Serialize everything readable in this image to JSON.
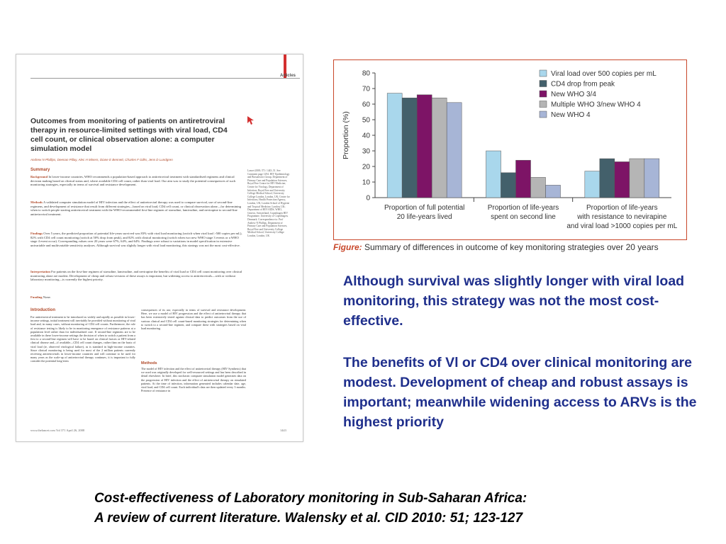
{
  "article": {
    "section_label": "Articles",
    "title": "Outcomes from monitoring of patients on antiretroviral therapy in resource-limited settings with viral load, CD4 cell count, or clinical observation alone: a computer simulation model",
    "authors": "Andrew N Phillips, Deenan Pillay, Alec H Miners, Diane E Bennett, Charles F Gilks, Jens D Lundgren",
    "summary_heading": "Summary",
    "background_label": "Background",
    "background_text": "In lower-income countries, WHO recommends a population-based approach to antiretroviral treatment with standardised regimens and clinical decision making based on clinical status and, where available CD4 cell count, rather than viral load. Our aim was to study the potential consequences of such monitoring strategies, especially in terms of survival and resistance development.",
    "methods_label": "Methods",
    "methods_text": "A validated computer simulation model of HIV infection and the effect of antiretroviral therapy was used to compare survival, use of second-line regimens, and development of resistance that result from different strategies—based on viral load, CD4 cell count, or clinical observation alone—for determining when to switch people starting antiretroviral treatment with the WHO-recommended first-line regimen of stavudine, lamivudine, and nevirapine to second-line antiretroviral treatment.",
    "findings_label": "Findings",
    "findings_text": "Over 5 years, the predicted proportion of potential life-years survived was 83% with viral load monitoring (switch when viral load >500 copies per mL), 82% with CD4 cell count monitoring (switch at 50% drop from peak), and 82% with clinical monitoring (switch when two new WHO stage 3 events or a WHO stage 4 event occur). Corresponding values over 20 years were 67%, 64%, and 64%. Findings were robust to variations in model specification in extensive univariable and multivariable sensitivity analyses. Although survival was slightly longer with viral load monitoring, this strategy was not the most cost-effective.",
    "interpretation_label": "Interpretation",
    "interpretation_text": "For patients on the first-line regimen of stavudine, lamivudine, and nevirapine the benefits of viral load or CD4 cell count monitoring over clinical monitoring alone are modest. Development of cheap and robust versions of these assays is important, but widening access to antiretrovirals—with or without laboratory monitoring—is currently the highest priority.",
    "funding_label": "Funding",
    "funding_text": "None.",
    "sidebar_text": "Lancet 2008; 371: 1443–51. See Comment page 1294. HIV Epidemiology and Biostatistics Group, Department of Primary Care and Population Sciences, Royal Free Centre for HIV Medicine; Centre for Virology, Department of Infection; Royal Free and University College Medical School, University College London, London, UK; Centre for Infections, Health Protection Agency, London, UK; London School of Hygiene and Tropical Medicine, London, UK; Department of HIV/AIDS, WHO, Geneva, Switzerland; Copenhagen HIV Programme, University of Copenhagen, Denmark. Correspondence to: Prof Andrew N Phillips, Department of Primary Care and Population Sciences, Royal Free and University College Medical School, University College London, London, UK",
    "intro_heading": "Introduction",
    "intro_text": "For antiretroviral treatment to be introduced as widely and rapidly as possible in lower-income settings, initial treatment will inevitably be provided without monitoring of viral load and, in many cases, without monitoring of CD4 cell counts. Furthermore, the role of resistance testing is likely to be in monitoring emergence of resistance patterns at a population level rather than for individualised care. If second-line regimens are to be available in these lower-income settings the decision of when to switch a patient from a first to a second-line regimen will have to be based on clinical factors or HIV-related clinical disease and—if available—CD4 cell count changes, rather than on the basis of viral load (ie, observed virological failure), as is standard in high-income countries. Since clinical monitoring is being used for most of the 2 million patients currently receiving antiretrovirals in lower-income countries and will continue to be used for many years as the scale-up of antiretroviral therapy continues, it is important to fully consider the potential long-term",
    "col2_text": "consequences of its use, especially in terms of survival and resistance development. Here, we use a model of HIV progression and the effect of antiretroviral therapy that has been extensively tested against clinical data to predict outcomes from the use of various clinical and CD4 cell count-based monitoring strategies for determining when to switch to a second-line regimen, and compare these with strategies based on viral load monitoring.",
    "col2_methods_heading": "Methods",
    "col2_methods_text": "The model of HIV infection and the effect of antiretroviral therapy (HIV Synthesis) that we used was originally developed for well-resourced settings and has been described in detail elsewhere. In brief, this stochastic computer simulation model generates data on the progression of HIV infection and the effect of antiretroviral therapy on simulated patients. At the time of infection, information generated includes calendar date, age, viral load, and CD4 cell count. Each individual's data are then updated every 3 months. Presence of resistance in",
    "footer_left": "www.thelancet.com   Vol 371   April 26, 2008",
    "footer_right": "1443"
  },
  "chart_data": {
    "type": "bar",
    "ylabel": "Proportion (%)",
    "ylim": [
      0,
      80
    ],
    "yticks": [
      0,
      10,
      20,
      30,
      40,
      50,
      60,
      70,
      80
    ],
    "categories": [
      [
        "Proportion of full potential",
        "20 life-years lived"
      ],
      [
        "Proportion of life-years",
        "spent on second line"
      ],
      [
        "Proportion of life-years",
        "with resistance to nevirapine",
        "and viral load >1000 copies per mL"
      ]
    ],
    "series": [
      {
        "name": "Viral load over 500 copies per mL",
        "color": "#a9d7ec",
        "values": [
          67,
          30,
          17
        ]
      },
      {
        "name": "CD4 drop from peak",
        "color": "#43606b",
        "values": [
          64,
          16,
          25
        ]
      },
      {
        "name": "New WHO 3/4",
        "color": "#7d1466",
        "values": [
          66,
          24,
          23
        ]
      },
      {
        "name": "Multiple WHO 3/new WHO 4",
        "color": "#b5b5b5",
        "values": [
          64,
          13,
          25
        ]
      },
      {
        "name": "New WHO 4",
        "color": "#a7b5d6",
        "values": [
          61,
          8,
          25
        ]
      }
    ],
    "legend_position": "top-right"
  },
  "figure_caption": {
    "label": "Figure:",
    "text": " Summary of differences in outcome of key monitoring strategies over 20 years"
  },
  "text": {
    "para1": "Although survival was slightly longer with viral load monitoring, this strategy was not the most cost-effective.",
    "para2": "The benefits of Vl or CD4 over clinical monitoring are modest. Development of cheap and robust assays is important; meanwhile widening access to ARVs is the highest priority"
  },
  "citation": {
    "line1": "Cost-effectiveness of Laboratory monitoring in Sub-Saharan Africa:",
    "line2": "A review of current literature.  Walensky et al.  CID 2010: 51; 123-127"
  },
  "colors": {
    "accent": "#c8472a",
    "body_text": "#1f2f8c"
  }
}
